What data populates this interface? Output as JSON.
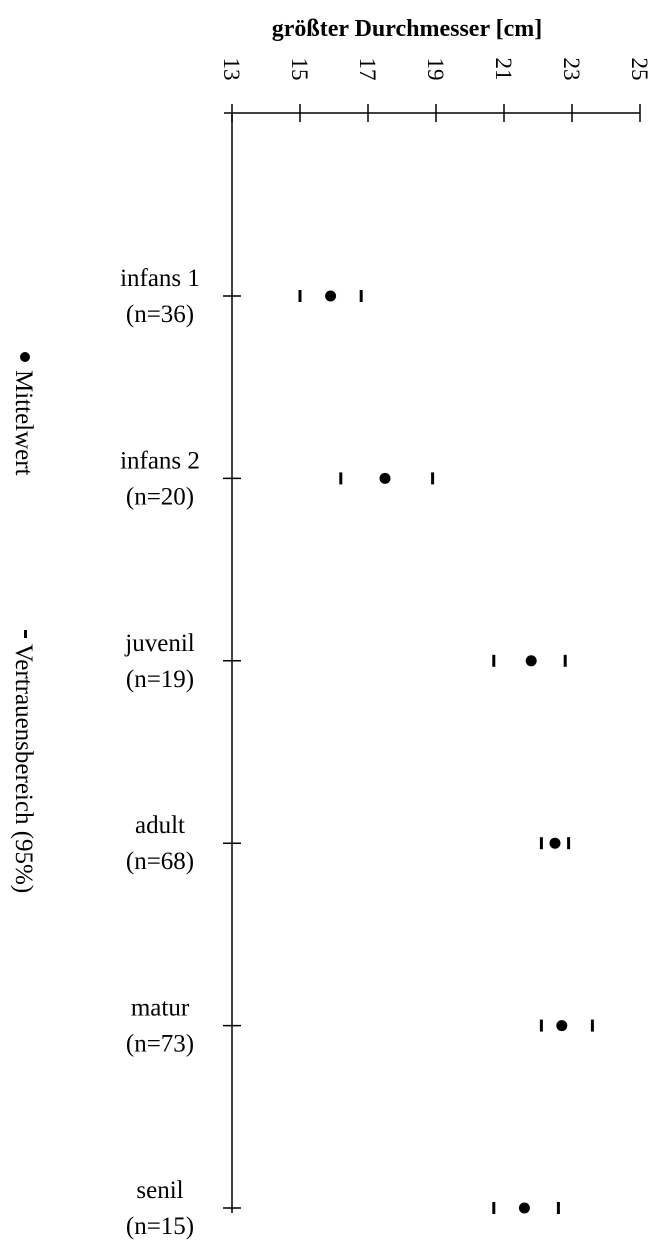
{
  "chart_data": {
    "type": "scatter",
    "title": "größter Durchmesser [cm]",
    "xlabel": "größter Durchmesser [cm]",
    "ylabel": "",
    "xlim": [
      13,
      25
    ],
    "xticks": [
      "13",
      "15",
      "17",
      "19",
      "21",
      "23",
      "25"
    ],
    "categories": [
      {
        "label": "infans 1",
        "n": "(n=36)",
        "mean": 15.9,
        "ci": [
          15.0,
          16.8
        ]
      },
      {
        "label": "infans 2",
        "n": "(n=20)",
        "mean": 17.5,
        "ci": [
          16.2,
          18.9
        ]
      },
      {
        "label": "juvenil",
        "n": "(n=19)",
        "mean": 21.8,
        "ci": [
          20.7,
          22.8
        ]
      },
      {
        "label": "adult",
        "n": "(n=68)",
        "mean": 22.5,
        "ci": [
          22.1,
          22.9
        ]
      },
      {
        "label": "matur",
        "n": "(n=73)",
        "mean": 22.7,
        "ci": [
          22.1,
          23.6
        ]
      },
      {
        "label": "senil",
        "n": "(n=15)",
        "mean": 21.6,
        "ci": [
          20.7,
          22.6
        ]
      }
    ],
    "legend": {
      "placement": "left, rotated",
      "mean_label": "Mittelwert",
      "ci_label": "Vertrauensbereich (95%)"
    },
    "grid": false
  }
}
